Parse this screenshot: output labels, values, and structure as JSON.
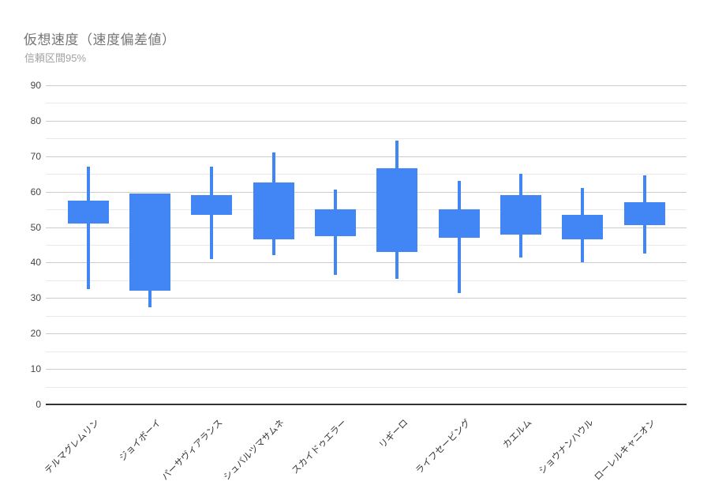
{
  "chart": {
    "title": "仮想速度（速度偏差値）",
    "subtitle": "信頼区間95%",
    "colors": {
      "candle_fill": "#4285f4",
      "major_gridline": "#cccccc",
      "minor_gridline": "#e9e9e9",
      "zero_axis": "#333333",
      "title_text": "#757575",
      "subtitle_text": "#a2a2a2",
      "tick_text": "#444444",
      "category_text": "#333333",
      "background": "#ffffff"
    }
  },
  "chart_data": {
    "type": "candlestick",
    "title": "仮想速度（速度偏差値）",
    "subtitle": "信頼区間95%",
    "xlabel": "",
    "ylabel": "",
    "ylim": [
      0,
      90
    ],
    "yticks": [
      0,
      10,
      20,
      30,
      40,
      50,
      60,
      70,
      80,
      90
    ],
    "minor_grid_step": 5,
    "grid": "horizontal only",
    "legend_position": "none",
    "categories": [
      "テルマグレムリン",
      "ジョイボーイ",
      "パーサヴィアランス",
      "シュバルツマサムネ",
      "スカイドゥエラー",
      "リギーロ",
      "ライフセービング",
      "カエルム",
      "ショウナンハウル",
      "ローレルキャニオン"
    ],
    "points": [
      {
        "label": "テルマグレムリン",
        "low": 32.5,
        "box_low": 51,
        "box_high": 57.5,
        "high": 67
      },
      {
        "label": "ジョイボーイ",
        "low": 27.5,
        "box_low": 32,
        "box_high": 59.5,
        "high": 59.5
      },
      {
        "label": "パーサヴィアランス",
        "low": 41,
        "box_low": 53.5,
        "box_high": 59,
        "high": 67
      },
      {
        "label": "シュバルツマサムネ",
        "low": 42,
        "box_low": 46.5,
        "box_high": 62.5,
        "high": 71
      },
      {
        "label": "スカイドゥエラー",
        "low": 36.5,
        "box_low": 47.5,
        "box_high": 55,
        "high": 60.5
      },
      {
        "label": "リギーロ",
        "low": 35.5,
        "box_low": 43,
        "box_high": 66.5,
        "high": 74.5
      },
      {
        "label": "ライフセービング",
        "low": 31.5,
        "box_low": 47,
        "box_high": 55,
        "high": 63
      },
      {
        "label": "カエルム",
        "low": 41.5,
        "box_low": 48,
        "box_high": 59,
        "high": 65
      },
      {
        "label": "ショウナンハウル",
        "low": 40,
        "box_low": 46.5,
        "box_high": 53.5,
        "high": 61
      },
      {
        "label": "ローレルキャニオン",
        "low": 42.5,
        "box_low": 50.5,
        "box_high": 57,
        "high": 64.5
      }
    ]
  }
}
